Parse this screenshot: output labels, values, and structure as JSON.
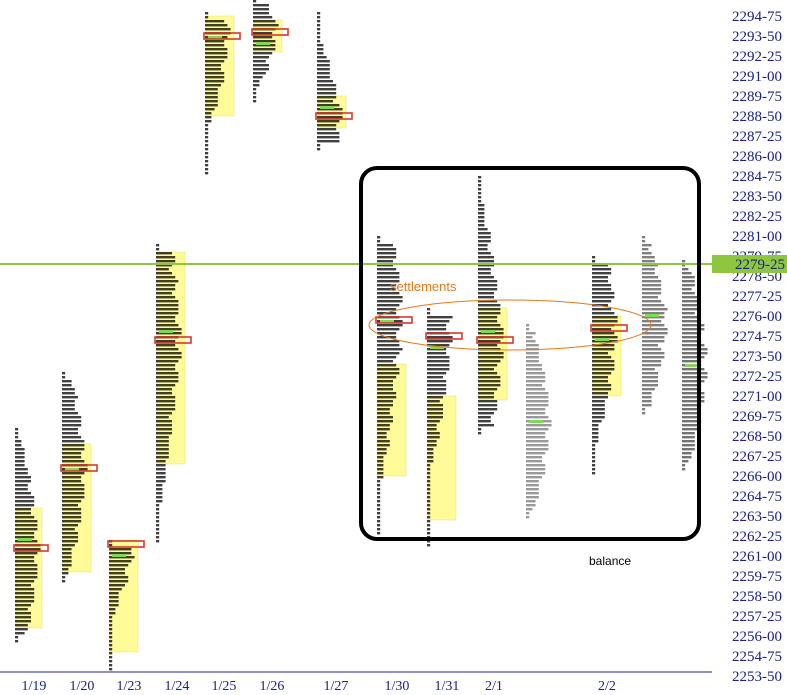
{
  "chart_data": {
    "type": "market-profile",
    "title": "",
    "xlabel": "",
    "ylabel": "",
    "y_ticks": [
      "2294-75",
      "2293-50",
      "2292-25",
      "2291-00",
      "2289-75",
      "2288-50",
      "2287-25",
      "2286-00",
      "2284-75",
      "2283-50",
      "2282-25",
      "2281-00",
      "2279-75",
      "2278-50",
      "2277-25",
      "2276-00",
      "2274-75",
      "2273-50",
      "2272-25",
      "2271-00",
      "2269-75",
      "2268-50",
      "2267-25",
      "2266-00",
      "2264-75",
      "2263-50",
      "2262-25",
      "2261-00",
      "2259-75",
      "2258-50",
      "2257-25",
      "2256-00",
      "2254-75",
      "2253-50"
    ],
    "y_first_tick_value": 2294.75,
    "y_tick_step": -1.25,
    "last_price_label": "2279-25",
    "last_price": 2279.25,
    "sessions": [
      {
        "date": "1/19",
        "low": 2255.75,
        "high": 2269.0,
        "va_low": 2256.5,
        "va_high": 2264.0,
        "poc": 2261.5,
        "settlement": 2261.5,
        "color": "#000000"
      },
      {
        "date": "1/20",
        "low": 2259.5,
        "high": 2272.5,
        "va_low": 2260.0,
        "va_high": 2268.0,
        "poc": 2266.5,
        "settlement": 2266.5,
        "color": "#000000"
      },
      {
        "date": "1/23",
        "low": 2254.0,
        "high": 2262.0,
        "va_low": 2255.0,
        "va_high": 2262.0,
        "poc": 2261.75,
        "settlement": 2261.75,
        "color": "#000000"
      },
      {
        "date": "1/24",
        "low": 2262.0,
        "high": 2280.5,
        "va_low": 2266.75,
        "va_high": 2280.0,
        "poc": 2274.5,
        "settlement": 2274.5,
        "color": "#000000"
      },
      {
        "date": "1/25",
        "low": 2285.0,
        "high": 2295.0,
        "va_low": 2288.5,
        "va_high": 2294.75,
        "poc": 2293.5,
        "settlement": 2293.5,
        "color": "#000000"
      },
      {
        "date": "1/26",
        "low": 2289.5,
        "high": 2296.0,
        "va_low": 2292.5,
        "va_high": 2294.5,
        "poc": 2293.75,
        "settlement": 2293.75,
        "color": "#000000"
      },
      {
        "date": "1/27",
        "low": 2286.5,
        "high": 2295.0,
        "va_low": 2287.75,
        "va_high": 2289.75,
        "poc": 2288.5,
        "settlement": 2288.5,
        "color": "#000000"
      },
      {
        "date": "1/30",
        "low": 2262.5,
        "high": 2281.0,
        "va_low": 2266.0,
        "va_high": 2273.0,
        "poc": 2275.75,
        "settlement": 2275.75,
        "color": "#000000"
      },
      {
        "date": "1/31",
        "low": 2261.75,
        "high": 2276.5,
        "va_low": 2263.25,
        "va_high": 2271.0,
        "poc": 2274.75,
        "settlement": 2274.75,
        "color": "#000000"
      },
      {
        "date": "2/1",
        "low": 2268.75,
        "high": 2284.75,
        "va_low": 2270.75,
        "va_high": 2276.5,
        "poc": 2274.5,
        "settlement": 2274.5,
        "color": "#000000"
      },
      {
        "date": "",
        "low": 2263.5,
        "high": 2275.5,
        "va_low": null,
        "va_high": null,
        "poc": null,
        "settlement": null,
        "color": "#777777"
      },
      {
        "date": "2/2",
        "low": 2266.25,
        "high": 2279.75,
        "va_low": 2271.0,
        "va_high": 2276.0,
        "poc": 2275.25,
        "settlement": 2275.25,
        "color": "#000000"
      },
      {
        "date": "",
        "low": 2270.0,
        "high": 2281.0,
        "va_low": null,
        "va_high": null,
        "poc": null,
        "settlement": null,
        "color": "#555555"
      },
      {
        "date": "",
        "low": 2266.5,
        "high": 2279.5,
        "va_low": null,
        "va_high": null,
        "poc": null,
        "settlement": null,
        "color": "#444444"
      }
    ],
    "annotations": [
      {
        "text": "settlements",
        "color": "#e07b20"
      },
      {
        "text": "balance",
        "color": "#000000"
      }
    ],
    "colors": {
      "value_area": "#fffb99",
      "value_area_edge": "#e6e070",
      "poc_box": "#d33a2c",
      "last_price_line": "#8ec63f",
      "axis_text": "#1a237e",
      "settlement_ellipse": "#e07b20",
      "balance_box": "#000000",
      "green_marks": "#7ed957"
    }
  }
}
